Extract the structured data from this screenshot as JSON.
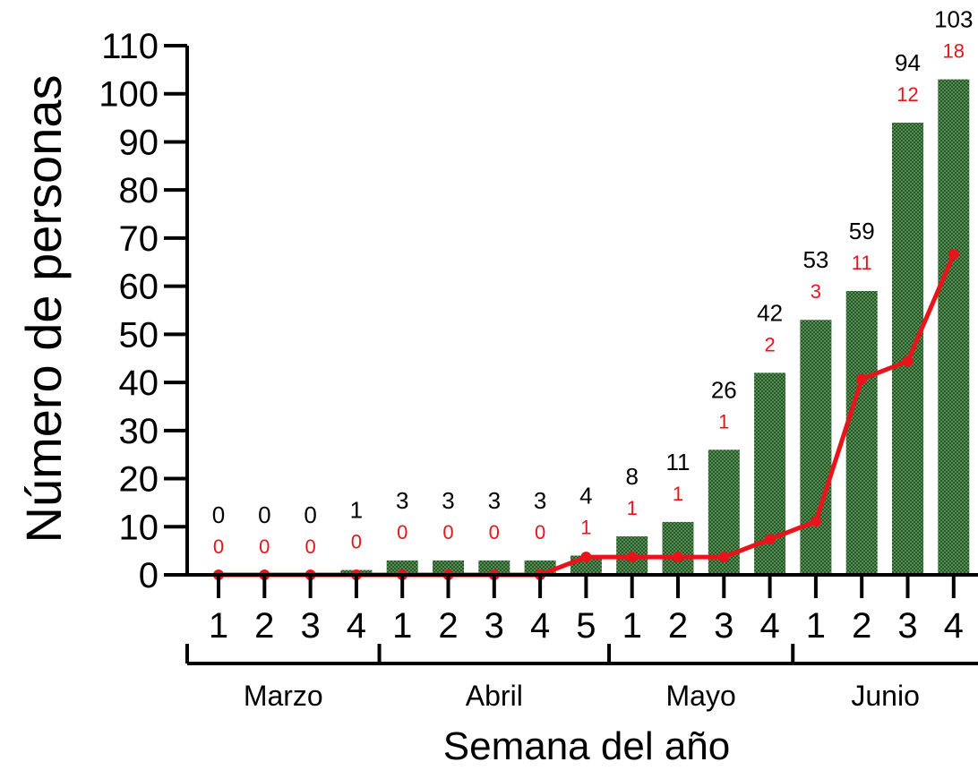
{
  "chart_data": {
    "type": "bar",
    "xlabel": "Semana del año",
    "ylabel": "Número de personas",
    "ylim": [
      0,
      110
    ],
    "y_ticks": [
      "0",
      "10",
      "20",
      "30",
      "40",
      "50",
      "60",
      "70",
      "80",
      "90",
      "100",
      "110"
    ],
    "categories": [
      "1",
      "2",
      "3",
      "4",
      "1",
      "2",
      "3",
      "4",
      "5",
      "1",
      "2",
      "3",
      "4",
      "1",
      "2",
      "3",
      "4"
    ],
    "months": [
      {
        "label": "Marzo",
        "weeks": 4
      },
      {
        "label": "Abril",
        "weeks": 5
      },
      {
        "label": "Mayo",
        "weeks": 4
      },
      {
        "label": "Junio",
        "weeks": 4
      }
    ],
    "series": [
      {
        "type": "bar",
        "color": "#1f5a1f",
        "values": [
          0,
          0,
          0,
          1,
          3,
          3,
          3,
          3,
          4,
          8,
          11,
          26,
          42,
          53,
          59,
          94,
          103
        ],
        "labels": [
          "0",
          "0",
          "0",
          "1",
          "3",
          "3",
          "3",
          "3",
          "4",
          "8",
          "11",
          "26",
          "42",
          "53",
          "59",
          "94",
          "103"
        ]
      },
      {
        "type": "line",
        "color": "#e8141b",
        "values": [
          0,
          0,
          0,
          0,
          0,
          0,
          0,
          0,
          3.7,
          3.7,
          3.7,
          3.7,
          7.4,
          11.1,
          40.7,
          44.4,
          66.6
        ],
        "labels": [
          "0",
          "0",
          "0",
          "0",
          "0",
          "0",
          "0",
          "0",
          "1",
          "1",
          "1",
          "1",
          "2",
          "3",
          "11",
          "12",
          "18"
        ]
      }
    ]
  }
}
